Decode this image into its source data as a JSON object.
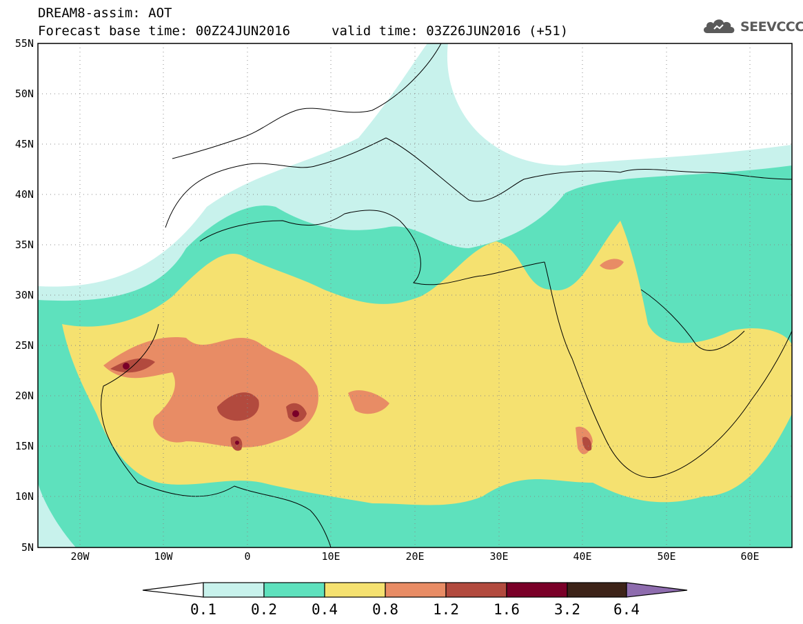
{
  "header": {
    "title": "DREAM8-assim: AOT",
    "base_time": "Forecast base time: 00Z24JUN2016",
    "valid_time": "valid time: 03Z26JUN2016 (+51)"
  },
  "logo": {
    "text": "SEEVCCC",
    "icon": "cloud-icon"
  },
  "map": {
    "lat_labels": [
      "55N",
      "50N",
      "45N",
      "40N",
      "35N",
      "30N",
      "25N",
      "20N",
      "15N",
      "10N",
      "5N"
    ],
    "lon_labels": [
      "20W",
      "10W",
      "0",
      "10E",
      "20E",
      "30E",
      "40E",
      "50E",
      "60E"
    ],
    "lat_range": [
      5,
      55
    ],
    "lon_range": [
      -25,
      65
    ],
    "grid": "dotted"
  },
  "colorbar": {
    "labels": [
      "0.1",
      "0.2",
      "0.4",
      "0.8",
      "1.2",
      "1.6",
      "3.2",
      "6.4"
    ],
    "colors": [
      "#ffffff",
      "#c8f2ec",
      "#5ee1bd",
      "#f5e170",
      "#e88c65",
      "#b24a3e",
      "#7a0028",
      "#3d2318",
      "#8e6cae"
    ]
  }
}
